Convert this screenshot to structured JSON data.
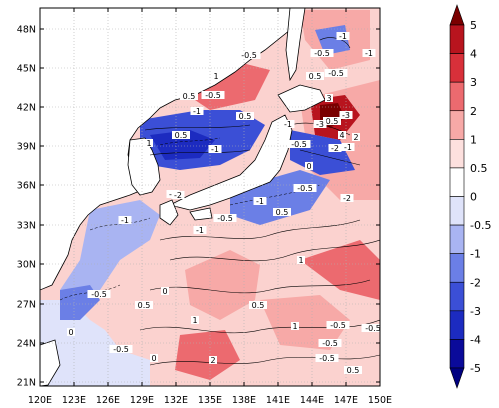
{
  "map": {
    "lat_ticks": [
      "48N",
      "45N",
      "42N",
      "39N",
      "36N",
      "33N",
      "30N",
      "27N",
      "24N",
      "21N"
    ],
    "lon_ticks": [
      "120E",
      "123E",
      "126E",
      "129E",
      "132E",
      "135E",
      "138E",
      "141E",
      "144E",
      "147E",
      "150E"
    ]
  },
  "colorbar": {
    "labels": [
      "5",
      "4",
      "3",
      "2",
      "1",
      "0.5",
      "0",
      "-0.5",
      "-1",
      "-2",
      "-3",
      "-4",
      "-5"
    ],
    "colors": [
      "#7a0000",
      "#b8141e",
      "#d8303a",
      "#ec6a6f",
      "#f7a9a7",
      "#fde0de",
      "#ffffff",
      "#dfe3fa",
      "#a9b4f2",
      "#6b7fe6",
      "#3b4fd6",
      "#1c2bc0",
      "#0a0a9a",
      "#000080"
    ]
  },
  "contour_labels": [
    "-1",
    "-1",
    "-0.5",
    "-0.5",
    "0.5",
    "-0.5",
    "1",
    "-0.5",
    "0.5",
    "-1",
    "-3",
    "0.5",
    "-2",
    "-1",
    "-3",
    "-1",
    "-0.5",
    "4",
    "2",
    "3",
    "-2",
    "-0.5",
    "-1",
    "-2",
    "-1",
    "-0.5",
    "-1",
    "-2",
    "0.5",
    "1",
    "-0.5",
    "0",
    "0.5",
    "1",
    "0.5",
    "-0.5",
    "0",
    "1",
    "-0.5",
    "-0.5",
    "2",
    "0",
    "1",
    "0.5",
    "0.5",
    "-1",
    "0",
    "-0.5",
    "-0.5",
    "0.5"
  ]
}
